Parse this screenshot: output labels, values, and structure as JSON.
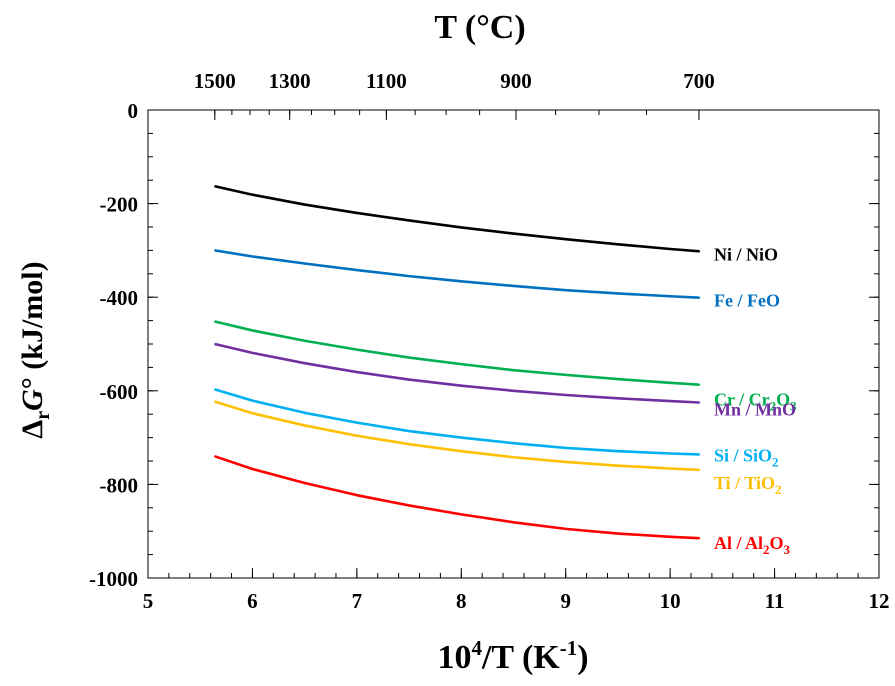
{
  "chart_data": {
    "type": "line",
    "title": "",
    "top_axis": {
      "label": "T (°C)",
      "ticks": [
        1500,
        1300,
        1100,
        900,
        700
      ]
    },
    "xlabel": "10⁴/T (K⁻¹)",
    "xlabel_parts": {
      "base": "10",
      "sup1": "4",
      "mid": "/T (K",
      "sup2": "-1",
      "end": ")"
    },
    "ylabel": "ΔrG° (kJ/mol)",
    "ylabel_parts": {
      "delta": "Δ",
      "sub": "r",
      "g": "G",
      "deg": "°",
      "rest": " (kJ/mol)"
    },
    "xlim": [
      5,
      12
    ],
    "ylim": [
      -1000,
      0
    ],
    "x_ticks": [
      5,
      6,
      7,
      8,
      9,
      10,
      11,
      12
    ],
    "y_ticks": [
      0,
      -200,
      -400,
      -600,
      -800,
      -1000
    ],
    "grid": false,
    "legend": "inline-right",
    "series": [
      {
        "name": "Ni / NiO",
        "label_parts": [
          "Ni / NiO"
        ],
        "color": "#000000",
        "x": [
          5.64,
          6.0,
          6.5,
          7.0,
          7.5,
          8.0,
          8.5,
          9.0,
          9.5,
          10.0,
          10.28
        ],
        "y": [
          -163,
          -181,
          -202,
          -220,
          -236,
          -251,
          -264,
          -276,
          -287,
          -297,
          -302
        ]
      },
      {
        "name": "Fe / FeO",
        "label_parts": [
          "Fe / FeO"
        ],
        "color": "#0070c0",
        "x": [
          5.64,
          6.0,
          6.5,
          7.0,
          7.5,
          8.0,
          8.5,
          9.0,
          9.5,
          10.0,
          10.28
        ],
        "y": [
          -300,
          -313,
          -328,
          -342,
          -355,
          -366,
          -376,
          -385,
          -392,
          -398,
          -401
        ]
      },
      {
        "name": "Cr / Cr2O3",
        "label_parts": [
          "Cr / Cr",
          "2",
          "O",
          "3"
        ],
        "color": "#00b050",
        "x": [
          5.64,
          6.0,
          6.5,
          7.0,
          7.5,
          8.0,
          8.5,
          9.0,
          9.5,
          10.0,
          10.28
        ],
        "y": [
          -452,
          -471,
          -493,
          -512,
          -529,
          -543,
          -556,
          -566,
          -575,
          -583,
          -587
        ]
      },
      {
        "name": "Mn / MnO",
        "label_parts": [
          "Mn / MnO"
        ],
        "color": "#7030a0",
        "x": [
          5.64,
          6.0,
          6.5,
          7.0,
          7.5,
          8.0,
          8.5,
          9.0,
          9.5,
          10.0,
          10.28
        ],
        "y": [
          -500,
          -519,
          -541,
          -560,
          -576,
          -589,
          -600,
          -609,
          -616,
          -622,
          -625
        ]
      },
      {
        "name": "Si / SiO2",
        "label_parts": [
          "Si / SiO",
          "2"
        ],
        "color": "#00b0f0",
        "x": [
          5.64,
          6.0,
          6.5,
          7.0,
          7.5,
          8.0,
          8.5,
          9.0,
          9.5,
          10.0,
          10.28
        ],
        "y": [
          -597,
          -621,
          -647,
          -668,
          -686,
          -700,
          -712,
          -722,
          -729,
          -734,
          -736
        ]
      },
      {
        "name": "Ti / TiO2",
        "label_parts": [
          "Ti / TiO",
          "2"
        ],
        "color": "#ffc000",
        "x": [
          5.64,
          6.0,
          6.5,
          7.0,
          7.5,
          8.0,
          8.5,
          9.0,
          9.5,
          10.0,
          10.28
        ],
        "y": [
          -623,
          -648,
          -674,
          -696,
          -714,
          -729,
          -742,
          -752,
          -760,
          -766,
          -769
        ]
      },
      {
        "name": "Al / Al2O3",
        "label_parts": [
          "Al / Al",
          "2",
          "O",
          "3"
        ],
        "color": "#ff0000",
        "x": [
          5.64,
          6.0,
          6.5,
          7.0,
          7.5,
          8.0,
          8.5,
          9.0,
          9.5,
          10.0,
          10.28
        ],
        "y": [
          -740,
          -767,
          -797,
          -823,
          -845,
          -864,
          -881,
          -895,
          -905,
          -912,
          -915
        ]
      }
    ]
  }
}
